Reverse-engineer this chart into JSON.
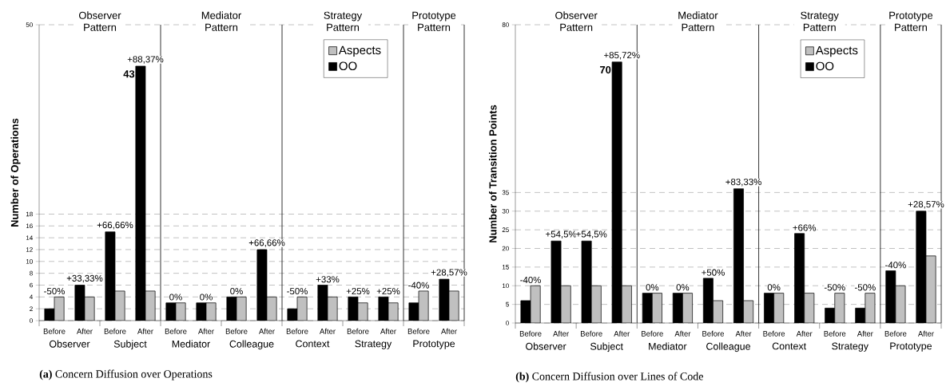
{
  "chart_data": [
    {
      "type": "bar",
      "title": "**(a)** Concern Diffusion over Operations",
      "ylabel": "Number of Operations",
      "categories": [
        "Before",
        "After",
        "Before",
        "After",
        "Before",
        "After",
        "Before",
        "After",
        "Before",
        "After",
        "Before",
        "After",
        "Before",
        "After"
      ],
      "series": [
        {
          "name": "OO",
          "color": "#000000",
          "values": [
            2,
            6,
            15,
            43,
            3,
            3,
            4,
            12,
            2,
            6,
            4,
            4,
            3,
            7
          ],
          "value_labels": [
            null,
            null,
            null,
            "43",
            null,
            null,
            null,
            null,
            null,
            null,
            null,
            null,
            null,
            null
          ]
        },
        {
          "name": "Aspects",
          "color": "#c0c0c0",
          "values": [
            4,
            4,
            5,
            5,
            3,
            3,
            4,
            4,
            4,
            4,
            3,
            3,
            5,
            5
          ]
        }
      ],
      "ylim": [
        0,
        50
      ],
      "yticks": [
        0,
        2,
        4,
        6,
        8,
        10,
        12,
        14,
        16,
        18,
        50
      ],
      "grid": "y",
      "legend": "top right",
      "annotations": [
        "-50%",
        "+33,33%",
        "+66,66%",
        "+88,37%",
        "0%",
        "0%",
        "0%",
        "+66,66%",
        "-50%",
        "+33%",
        "+25%",
        "+25%",
        "-40%",
        "+28,57%",
        "Observer",
        "Subject",
        "Mediator",
        "Colleague",
        "Context",
        "Strategy",
        "Prototype",
        "Observer Pattern",
        "Mediator Pattern",
        "Strategy Pattern",
        "Prototype Pattern"
      ]
    },
    {
      "type": "bar",
      "title": "**(b)** Concern Diffusion over Lines of Code",
      "ylabel": "Number of Transition Points",
      "categories": [
        "Before",
        "After",
        "Before",
        "After",
        "Before",
        "After",
        "Before",
        "After",
        "Before",
        "After",
        "Before",
        "After",
        "Before",
        "After"
      ],
      "series": [
        {
          "name": "OO",
          "color": "#000000",
          "values": [
            6,
            22,
            22,
            70,
            8,
            8,
            12,
            36,
            8,
            24,
            4,
            4,
            14,
            30
          ],
          "value_labels": [
            null,
            null,
            null,
            "70",
            null,
            null,
            null,
            null,
            null,
            null,
            null,
            null,
            null,
            null
          ]
        },
        {
          "name": "Aspects",
          "color": "#c0c0c0",
          "values": [
            10,
            10,
            10,
            10,
            8,
            8,
            6,
            6,
            8,
            8,
            8,
            8,
            10,
            18
          ]
        }
      ],
      "ylim": [
        0,
        80
      ],
      "yticks": [
        0,
        5,
        10,
        15,
        20,
        25,
        30,
        35,
        80
      ],
      "grid": "y",
      "legend": "top right",
      "annotations": [
        "-40%",
        "+54,5%",
        "+54,5%",
        "+85,72%",
        "0%",
        "0%",
        "+50%",
        "+83,33%",
        "0%",
        "+66%",
        "-50%",
        "-50%",
        "-40%",
        "+28,57%",
        "Observer",
        "Subject",
        "Mediator",
        "Colleague",
        "Context",
        "Strategy",
        "Prototype",
        "Observer Pattern",
        "Mediator Pattern",
        "Strategy Pattern",
        "Prototype Pattern"
      ]
    }
  ]
}
